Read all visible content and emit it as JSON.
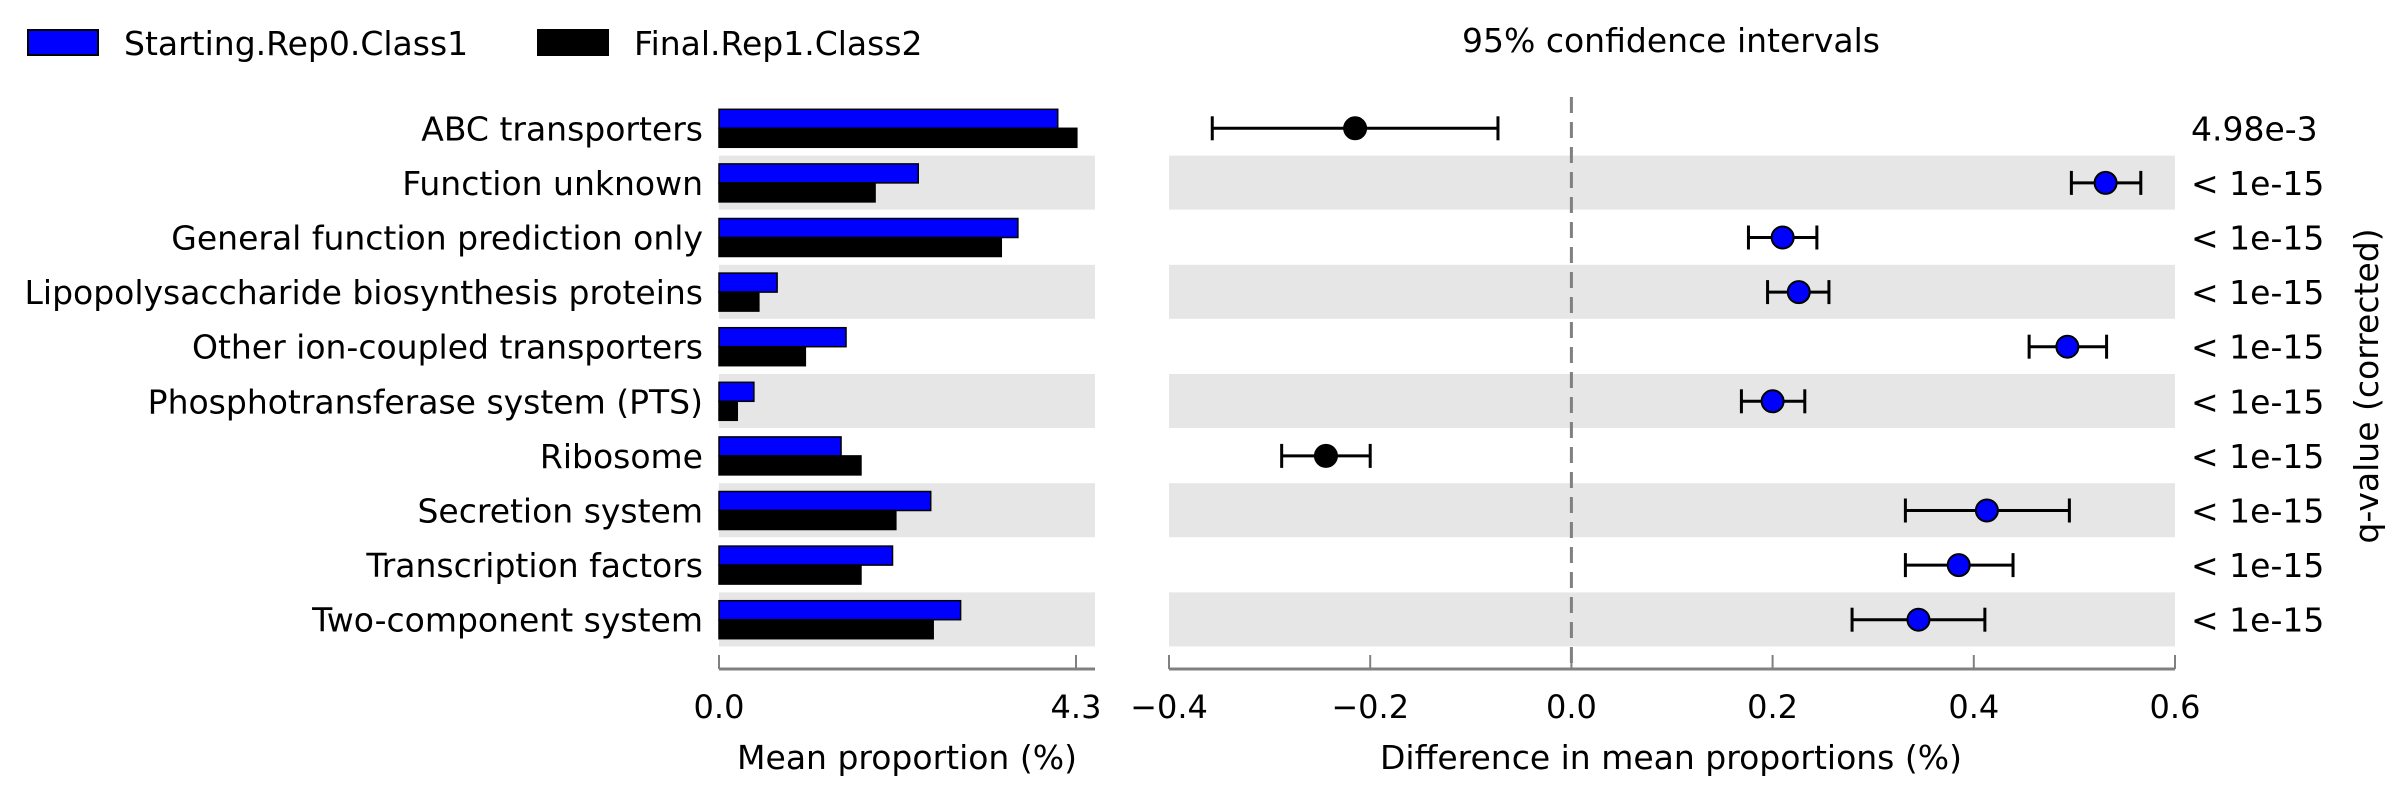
{
  "chart_data": {
    "type": "bar",
    "legend": {
      "placement": "top-left",
      "entries": [
        {
          "name": "Starting.Rep0.Class1",
          "color": "#0000ff"
        },
        {
          "name": "Final.Rep1.Class2",
          "color": "#000000"
        }
      ]
    },
    "categories": [
      "ABC transporters",
      "Function unknown",
      "General function prediction only",
      "Lipopolysaccharide biosynthesis proteins",
      "Other ion-coupled transporters",
      "Phosphotransferase system (PTS)",
      "Ribosome",
      "Secretion system",
      "Transcription factors",
      "Two-component system"
    ],
    "bar_panel": {
      "xlabel": "Mean proportion (%)",
      "xlim": [
        0,
        4.3
      ],
      "xticks": [
        "0.0",
        "4.3"
      ],
      "series": [
        {
          "name": "Starting.Rep0.Class1",
          "color": "#0000ff",
          "values": [
            4.08,
            2.4,
            3.6,
            0.7,
            1.53,
            0.42,
            1.47,
            2.55,
            2.09,
            2.91
          ]
        },
        {
          "name": "Final.Rep1.Class2",
          "color": "#000000",
          "values": [
            4.31,
            1.88,
            3.4,
            0.48,
            1.04,
            0.22,
            1.71,
            2.13,
            1.71,
            2.58
          ]
        }
      ]
    },
    "ci_panel": {
      "title": "95% confidence intervals",
      "xlabel": "Difference in mean proportions (%)",
      "xlim": [
        -0.4,
        0.6
      ],
      "xticks": [
        -0.4,
        -0.2,
        0.0,
        0.2,
        0.4,
        0.6
      ],
      "xtick_labels": [
        "−0.4",
        "−0.2",
        "0.0",
        "0.2",
        "0.4",
        "0.6"
      ],
      "reference_line": 0.0,
      "points": [
        {
          "value": -0.215,
          "ci": [
            -0.357,
            -0.073
          ],
          "color": "#000000"
        },
        {
          "value": 0.531,
          "ci": [
            0.497,
            0.566
          ],
          "color": "#0000ff"
        },
        {
          "value": 0.21,
          "ci": [
            0.176,
            0.244
          ],
          "color": "#0000ff"
        },
        {
          "value": 0.226,
          "ci": [
            0.195,
            0.256
          ],
          "color": "#0000ff"
        },
        {
          "value": 0.493,
          "ci": [
            0.455,
            0.532
          ],
          "color": "#0000ff"
        },
        {
          "value": 0.2,
          "ci": [
            0.169,
            0.232
          ],
          "color": "#0000ff"
        },
        {
          "value": -0.244,
          "ci": [
            -0.288,
            -0.2
          ],
          "color": "#000000"
        },
        {
          "value": 0.413,
          "ci": [
            0.332,
            0.495
          ],
          "color": "#0000ff"
        },
        {
          "value": 0.385,
          "ci": [
            0.332,
            0.439
          ],
          "color": "#0000ff"
        },
        {
          "value": 0.345,
          "ci": [
            0.279,
            0.411
          ],
          "color": "#0000ff"
        }
      ]
    },
    "pvalues": {
      "label": "q-value (corrected)",
      "values": [
        "4.98e-3",
        "< 1e-15",
        "< 1e-15",
        "< 1e-15",
        "< 1e-15",
        "< 1e-15",
        "< 1e-15",
        "< 1e-15",
        "< 1e-15",
        "< 1e-15"
      ]
    },
    "grid": false,
    "row_shading": "alternate"
  }
}
